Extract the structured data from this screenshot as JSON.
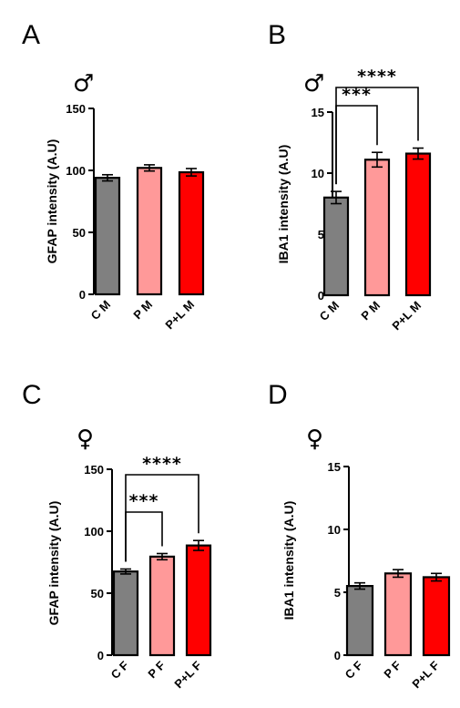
{
  "chart_data": [
    {
      "panel": "A",
      "sex_symbol": "♂",
      "type": "bar",
      "ylabel": "GFAP intensity (A.U)",
      "ylim": [
        0,
        150
      ],
      "yticks": [
        "0",
        "50",
        "100",
        "150"
      ],
      "categories": [
        "C M",
        "P M",
        "P+L M"
      ],
      "values": [
        94,
        102,
        98.5
      ],
      "errors": [
        2.5,
        2.5,
        3
      ],
      "colors": [
        "#808080",
        "#FF9999",
        "#FF0000"
      ],
      "significance": []
    },
    {
      "panel": "B",
      "sex_symbol": "♂",
      "type": "bar",
      "ylabel": "IBA1 intensity (A.U)",
      "ylim": [
        0,
        15
      ],
      "yticks": [
        "0",
        "5",
        "10",
        "15"
      ],
      "categories": [
        "C M",
        "P M",
        "P+L M"
      ],
      "values": [
        8.0,
        11.1,
        11.6
      ],
      "errors": [
        0.5,
        0.6,
        0.45
      ],
      "colors": [
        "#808080",
        "#FF9999",
        "#FF0000"
      ],
      "significance": [
        {
          "from": 0,
          "to": 1,
          "label": "***"
        },
        {
          "from": 0,
          "to": 2,
          "label": "****"
        }
      ]
    },
    {
      "panel": "C",
      "sex_symbol": "♀",
      "type": "bar",
      "ylabel": "GFAP intensity (A.U)",
      "ylim": [
        0,
        150
      ],
      "yticks": [
        "0",
        "50",
        "100",
        "150"
      ],
      "categories": [
        "C F",
        "P F",
        "P+L F"
      ],
      "values": [
        67.5,
        79.5,
        88.5
      ],
      "errors": [
        2,
        2.5,
        4
      ],
      "colors": [
        "#808080",
        "#FF9999",
        "#FF0000"
      ],
      "significance": [
        {
          "from": 0,
          "to": 1,
          "label": "***"
        },
        {
          "from": 0,
          "to": 2,
          "label": "****"
        }
      ]
    },
    {
      "panel": "D",
      "sex_symbol": "♀",
      "type": "bar",
      "ylabel": "IBA1 intensity (A.U)",
      "ylim": [
        0,
        15
      ],
      "yticks": [
        "0",
        "5",
        "10",
        "15"
      ],
      "categories": [
        "C F",
        "P F",
        "P+L F"
      ],
      "values": [
        5.5,
        6.5,
        6.2
      ],
      "errors": [
        0.25,
        0.3,
        0.3
      ],
      "colors": [
        "#808080",
        "#FF9999",
        "#FF0000"
      ],
      "significance": []
    }
  ]
}
